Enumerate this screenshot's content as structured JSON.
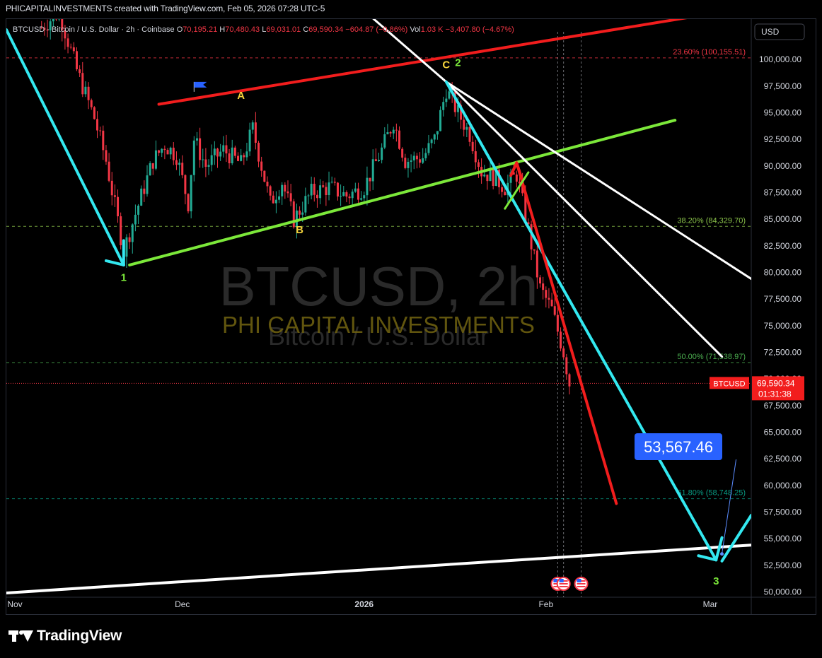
{
  "header": {
    "credit": "PHICAPITALINVESTMENTS created with TradingView.com, Feb 05, 2026 07:28 UTC-5",
    "symbol_line": "BTCUSD · Bitcoin / U.S. Dollar · 2h · Coinbase",
    "o_label": "O",
    "o_value": "70,195.21",
    "h_label": "H",
    "h_value": "70,480.43",
    "l_label": "L",
    "l_value": "69,031.01",
    "c_label": "C",
    "c_value": "69,590.34",
    "change": "−604.87 (−0.86%)",
    "vol_label": "Vol",
    "vol_value": "1.03 K",
    "vol_change": "−3,407.80 (−4.67%)",
    "currency_button": "USD"
  },
  "watermark": {
    "line1": "BTCUSD, 2h",
    "line2": "PHI CAPITAL INVESTMENTS",
    "line3": "Bitcoin / U.S. Dollar"
  },
  "price_badge": {
    "symbol": "BTCUSD",
    "price": "69,590.34",
    "countdown": "01:31:38"
  },
  "target_badge": "53,567.46",
  "footer": {
    "brand": "TradingView"
  },
  "colors": {
    "background": "#000000",
    "bull": "#22ab94",
    "bear": "#f23645",
    "cyan": "#33e8f0",
    "green": "#7ce83a",
    "red": "#f21d1d",
    "white": "#ffffff",
    "fib": "#9c27b0",
    "label_yellow": "#f5d33c",
    "badge_blue": "#2962ff",
    "badge_red": "#f21d1d"
  },
  "chart_data": {
    "type": "candlestick",
    "y_axis": {
      "range": [
        49500,
        103800
      ],
      "ticks": [
        100000,
        97500,
        95000,
        92500,
        90000,
        87500,
        85000,
        82500,
        80000,
        77500,
        75000,
        72500,
        70000,
        67500,
        65000,
        62500,
        60000,
        57500,
        55000,
        52500,
        50000
      ],
      "tick_labels": [
        "100,000.00",
        "97,500.00",
        "95,000.00",
        "92,500.00",
        "90,000.00",
        "87,500.00",
        "85,000.00",
        "82,500.00",
        "80,000.00",
        "77,500.00",
        "75,000.00",
        "72,500.00",
        "70,000.00",
        "67,500.00",
        "65,000.00",
        "62,500.00",
        "60,000.00",
        "57,500.00",
        "55,000.00",
        "52,500.00",
        "50,000.00"
      ]
    },
    "x_axis": {
      "range": [
        "2025-11-01",
        "2026-03-08"
      ],
      "ticks": [
        {
          "date": "2025-11-01",
          "label": "Nov"
        },
        {
          "date": "2025-12-01",
          "label": "Dec"
        },
        {
          "date": "2026-01-01",
          "label": "2026"
        },
        {
          "date": "2026-02-01",
          "label": "Feb"
        },
        {
          "date": "2026-03-01",
          "label": "Mar"
        }
      ]
    },
    "price_path": [
      {
        "date": "2025-11-07",
        "price": 103000
      },
      {
        "date": "2025-11-10",
        "price": 104500
      },
      {
        "date": "2025-11-13",
        "price": 99000
      },
      {
        "date": "2025-11-16",
        "price": 94500
      },
      {
        "date": "2025-11-18",
        "price": 90500
      },
      {
        "date": "2025-11-21",
        "price": 82000
      },
      {
        "date": "2025-11-23",
        "price": 85500
      },
      {
        "date": "2025-11-26",
        "price": 90500
      },
      {
        "date": "2025-11-28",
        "price": 92000
      },
      {
        "date": "2025-11-30",
        "price": 91000
      },
      {
        "date": "2025-12-02",
        "price": 86500
      },
      {
        "date": "2025-12-03",
        "price": 92500
      },
      {
        "date": "2025-12-05",
        "price": 90000
      },
      {
        "date": "2025-12-08",
        "price": 91500
      },
      {
        "date": "2025-12-11",
        "price": 90200
      },
      {
        "date": "2025-12-13",
        "price": 93500
      },
      {
        "date": "2025-12-16",
        "price": 86500
      },
      {
        "date": "2025-12-18",
        "price": 88500
      },
      {
        "date": "2025-12-20",
        "price": 85000
      },
      {
        "date": "2025-12-23",
        "price": 87500
      },
      {
        "date": "2025-12-26",
        "price": 88000
      },
      {
        "date": "2025-12-29",
        "price": 87200
      },
      {
        "date": "2026-01-01",
        "price": 88000
      },
      {
        "date": "2026-01-04",
        "price": 91500
      },
      {
        "date": "2026-01-06",
        "price": 94200
      },
      {
        "date": "2026-01-08",
        "price": 90500
      },
      {
        "date": "2026-01-11",
        "price": 90800
      },
      {
        "date": "2026-01-13",
        "price": 92500
      },
      {
        "date": "2026-01-15",
        "price": 97200
      },
      {
        "date": "2026-01-17",
        "price": 95000
      },
      {
        "date": "2026-01-19",
        "price": 93000
      },
      {
        "date": "2026-01-21",
        "price": 89500
      },
      {
        "date": "2026-01-23",
        "price": 89000
      },
      {
        "date": "2026-01-25",
        "price": 88000
      },
      {
        "date": "2026-01-27",
        "price": 89200
      },
      {
        "date": "2026-01-29",
        "price": 84000
      },
      {
        "date": "2026-01-31",
        "price": 78500
      },
      {
        "date": "2026-02-02",
        "price": 76500
      },
      {
        "date": "2026-02-04",
        "price": 72500
      },
      {
        "date": "2026-02-05",
        "price": 69590.34
      }
    ],
    "last_price": 69590.34,
    "fibonacci": [
      {
        "level": "23.60%",
        "price": 100155.51,
        "label": "23.60% (100,155.51)",
        "color": "#f23645"
      },
      {
        "level": "38.20%",
        "price": 84329.7,
        "label": "38.20% (84,329.70)",
        "color": "#8bc34a"
      },
      {
        "level": "50.00%",
        "price": 71538.97,
        "label": "50.00% (71,538.97)",
        "color": "#4caf50"
      },
      {
        "level": "61.80%",
        "price": 58748.25,
        "label": "61.80% (58,748.25)",
        "color": "#089981"
      }
    ],
    "wave_labels": [
      {
        "text": "A",
        "date": "2025-12-11",
        "price": 96300,
        "color": "#f5d33c"
      },
      {
        "text": "B",
        "date": "2025-12-21",
        "price": 83700,
        "color": "#f5d33c"
      },
      {
        "text": "C",
        "date": "2026-01-15",
        "price": 99200,
        "color": "#f5d33c"
      },
      {
        "text": "2",
        "date": "2026-01-17",
        "price": 99400,
        "color": "#7ce83a"
      },
      {
        "text": "1",
        "date": "2025-11-21",
        "price": 79200,
        "color": "#7ce83a"
      },
      {
        "text": "3",
        "date": "2026-03-02",
        "price": 50700,
        "color": "#7ce83a"
      }
    ],
    "target": {
      "price": 53567.46,
      "date": "2026-03-03"
    }
  }
}
